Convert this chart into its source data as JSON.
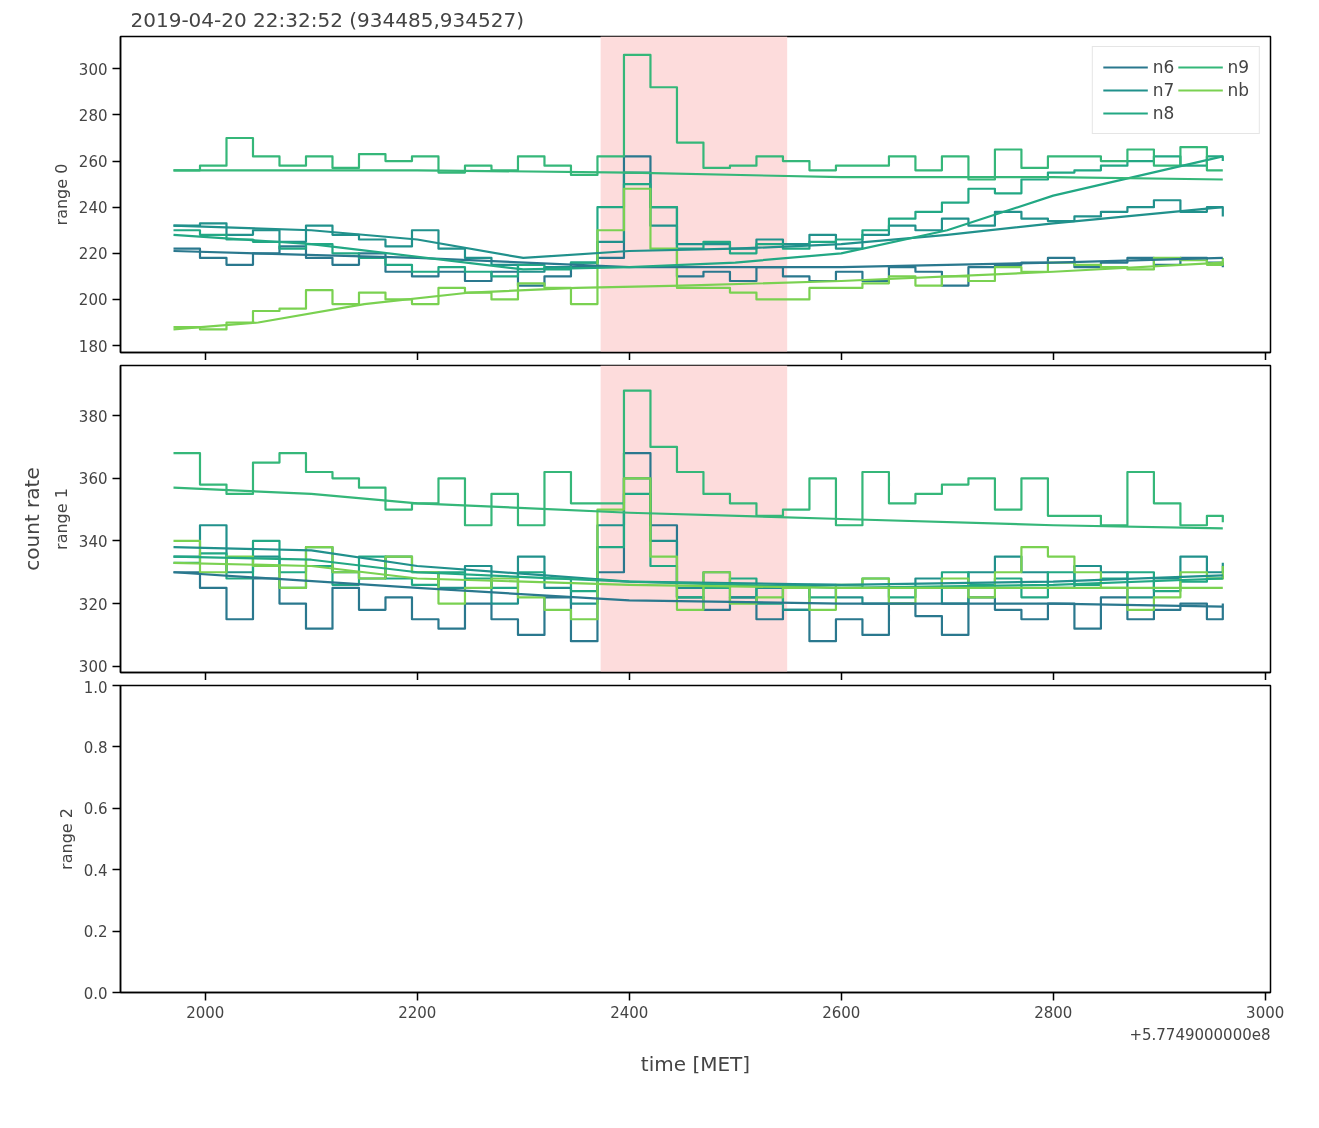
{
  "chart_data": [
    {
      "type": "step",
      "title": "2019-04-20 22:32:52 (934485,934527)",
      "ylabel": "range 0",
      "xlim": [
        1920,
        3005
      ],
      "xticks": [
        2000,
        2200,
        2400,
        2600,
        2800,
        3000
      ],
      "ylim": [
        177,
        314
      ],
      "yticks": [
        180,
        200,
        220,
        240,
        260,
        280,
        300
      ],
      "tick_labels": "y",
      "legend": "top right",
      "bands": [
        {
          "axis": "x",
          "from": 2373,
          "to": 2549,
          "color": "#fddcdc"
        }
      ],
      "x": [
        1970,
        1995,
        2020,
        2045,
        2070,
        2095,
        2120,
        2145,
        2170,
        2195,
        2220,
        2245,
        2270,
        2295,
        2320,
        2345,
        2370,
        2395,
        2420,
        2445,
        2470,
        2495,
        2520,
        2545,
        2570,
        2595,
        2620,
        2645,
        2670,
        2695,
        2720,
        2745,
        2770,
        2795,
        2820,
        2845,
        2870,
        2895,
        2920,
        2945,
        2960
      ],
      "series": [
        {
          "name": "n6",
          "color": "#2a788e",
          "values": [
            222,
            218,
            215,
            220,
            223,
            218,
            215,
            220,
            212,
            210,
            212,
            208,
            212,
            206,
            210,
            214,
            218,
            262,
            240,
            210,
            212,
            208,
            214,
            210,
            208,
            212,
            208,
            214,
            212,
            206,
            214,
            215,
            216,
            218,
            214,
            216,
            218,
            215,
            218,
            216,
            214
          ]
        },
        {
          "name": "n7",
          "color": "#21918c",
          "values": [
            232,
            233,
            228,
            230,
            225,
            232,
            228,
            226,
            223,
            230,
            222,
            218,
            215,
            212,
            214,
            216,
            225,
            255,
            232,
            224,
            224,
            222,
            226,
            224,
            228,
            222,
            228,
            232,
            230,
            235,
            232,
            238,
            235,
            234,
            236,
            238,
            240,
            243,
            238,
            240,
            236
          ]
        },
        {
          "name": "n8",
          "color": "#22a884",
          "values": [
            230,
            228,
            226,
            225,
            222,
            224,
            220,
            218,
            215,
            212,
            214,
            212,
            210,
            215,
            213,
            216,
            240,
            250,
            240,
            222,
            225,
            220,
            224,
            222,
            225,
            226,
            230,
            235,
            238,
            242,
            248,
            246,
            252,
            255,
            256,
            258,
            260,
            262,
            258,
            262,
            260
          ]
        },
        {
          "name": "n9",
          "color": "#35b779",
          "values": [
            256,
            258,
            270,
            262,
            258,
            262,
            257,
            263,
            260,
            262,
            255,
            258,
            256,
            262,
            258,
            254,
            262,
            306,
            292,
            268,
            257,
            258,
            262,
            260,
            256,
            258,
            258,
            262,
            256,
            262,
            252,
            265,
            257,
            262,
            262,
            260,
            265,
            258,
            266,
            256,
            256
          ]
        },
        {
          "name": "nb",
          "color": "#7ad151",
          "values": [
            188,
            187,
            190,
            195,
            196,
            204,
            198,
            203,
            200,
            198,
            205,
            203,
            200,
            207,
            205,
            198,
            230,
            248,
            222,
            205,
            205,
            203,
            200,
            200,
            205,
            205,
            207,
            210,
            206,
            210,
            208,
            214,
            212,
            216,
            215,
            214,
            213,
            218,
            217,
            215,
            218
          ]
        },
        {
          "type": "line",
          "color": "#2a788e",
          "x": [
            1970,
            2200,
            2400,
            2600,
            2800,
            2960
          ],
          "values": [
            221,
            218,
            214,
            214,
            216,
            218
          ]
        },
        {
          "type": "line",
          "color": "#21918c",
          "x": [
            1970,
            2100,
            2200,
            2300,
            2400,
            2500,
            2600,
            2700,
            2800,
            2960
          ],
          "values": [
            232,
            230,
            226,
            218,
            221,
            222,
            224,
            228,
            233,
            240
          ]
        },
        {
          "type": "line",
          "color": "#22a884",
          "x": [
            1970,
            2100,
            2300,
            2400,
            2500,
            2600,
            2700,
            2800,
            2960
          ],
          "values": [
            228,
            224,
            213,
            214,
            216,
            220,
            230,
            245,
            262
          ]
        },
        {
          "type": "line",
          "color": "#35b779",
          "x": [
            1970,
            2200,
            2400,
            2600,
            2800,
            2960
          ],
          "values": [
            256,
            256,
            255,
            253,
            253,
            252
          ]
        },
        {
          "type": "line",
          "color": "#7ad151",
          "x": [
            1970,
            2050,
            2150,
            2250,
            2350,
            2450,
            2600,
            2800,
            2960
          ],
          "values": [
            187,
            190,
            198,
            203,
            205,
            206,
            208,
            212,
            216
          ]
        }
      ]
    },
    {
      "type": "step",
      "ylabel": "range 1",
      "xlim": [
        1920,
        3005
      ],
      "xticks": [
        2000,
        2200,
        2400,
        2600,
        2800,
        3000
      ],
      "ylim": [
        298,
        396
      ],
      "yticks": [
        300,
        320,
        340,
        360,
        380
      ],
      "tick_labels": "y",
      "annotations": [
        "count rate"
      ],
      "bands": [
        {
          "axis": "x",
          "from": 2373,
          "to": 2549,
          "color": "#fddcdc"
        }
      ],
      "x": [
        1970,
        1995,
        2020,
        2045,
        2070,
        2095,
        2120,
        2145,
        2170,
        2195,
        2220,
        2245,
        2270,
        2295,
        2320,
        2345,
        2370,
        2395,
        2420,
        2445,
        2470,
        2495,
        2520,
        2545,
        2570,
        2595,
        2620,
        2645,
        2670,
        2695,
        2720,
        2745,
        2770,
        2795,
        2820,
        2845,
        2870,
        2895,
        2920,
        2945,
        2960
      ],
      "series": [
        {
          "color": "#2a788e",
          "values": [
            330,
            325,
            315,
            328,
            320,
            312,
            325,
            318,
            322,
            315,
            312,
            320,
            315,
            310,
            322,
            308,
            330,
            368,
            345,
            322,
            318,
            322,
            315,
            318,
            308,
            315,
            310,
            320,
            316,
            310,
            322,
            318,
            315,
            320,
            312,
            322,
            315,
            318,
            320,
            315,
            320
          ]
        },
        {
          "color": "#21918c",
          "values": [
            335,
            345,
            330,
            335,
            325,
            338,
            330,
            328,
            335,
            330,
            325,
            332,
            320,
            335,
            325,
            320,
            345,
            360,
            340,
            325,
            330,
            322,
            325,
            318,
            326,
            322,
            320,
            325,
            328,
            320,
            330,
            335,
            330,
            325,
            332,
            330,
            322,
            328,
            335,
            330,
            333
          ]
        },
        {
          "color": "#22a884",
          "values": [
            333,
            336,
            328,
            340,
            330,
            332,
            326,
            335,
            328,
            326,
            330,
            328,
            325,
            330,
            328,
            324,
            338,
            355,
            332,
            322,
            325,
            328,
            320,
            326,
            322,
            325,
            328,
            322,
            325,
            330,
            326,
            328,
            322,
            330,
            326,
            328,
            330,
            324,
            327,
            328,
            329
          ]
        },
        {
          "color": "#35b779",
          "values": [
            368,
            358,
            355,
            365,
            368,
            362,
            360,
            357,
            350,
            352,
            360,
            345,
            355,
            345,
            362,
            352,
            352,
            388,
            370,
            362,
            355,
            352,
            348,
            350,
            360,
            345,
            362,
            352,
            355,
            358,
            360,
            350,
            360,
            348,
            348,
            345,
            362,
            352,
            345,
            348,
            346
          ]
        },
        {
          "color": "#7ad151",
          "values": [
            340,
            330,
            335,
            332,
            325,
            338,
            330,
            328,
            335,
            330,
            320,
            325,
            328,
            322,
            318,
            315,
            350,
            360,
            335,
            318,
            330,
            320,
            322,
            325,
            318,
            326,
            328,
            320,
            325,
            328,
            322,
            330,
            338,
            335,
            330,
            325,
            318,
            322,
            330,
            328,
            332
          ]
        },
        {
          "type": "line",
          "color": "#2a788e",
          "x": [
            1970,
            2200,
            2400,
            2600,
            2800,
            2960
          ],
          "values": [
            330,
            325,
            321,
            320,
            320,
            319
          ]
        },
        {
          "type": "line",
          "color": "#21918c",
          "x": [
            1970,
            2100,
            2200,
            2400,
            2600,
            2800,
            2960
          ],
          "values": [
            338,
            337,
            332,
            327,
            326,
            327,
            329
          ]
        },
        {
          "type": "line",
          "color": "#22a884",
          "x": [
            1970,
            2100,
            2200,
            2400,
            2600,
            2800,
            2960
          ],
          "values": [
            335,
            334,
            330,
            327,
            325,
            326,
            328
          ]
        },
        {
          "type": "line",
          "color": "#35b779",
          "x": [
            1970,
            2100,
            2200,
            2400,
            2600,
            2800,
            2960
          ],
          "values": [
            357,
            355,
            352,
            349,
            347,
            345,
            344
          ]
        },
        {
          "type": "line",
          "color": "#7ad151",
          "x": [
            1970,
            2100,
            2200,
            2400,
            2600,
            2800,
            2960
          ],
          "values": [
            333,
            332,
            328,
            326,
            325,
            325,
            325
          ]
        }
      ]
    },
    {
      "type": "step",
      "ylabel": "range 2",
      "xlabel": "time [MET]",
      "xlim": [
        1920,
        3005
      ],
      "xticks": [
        2000,
        2200,
        2400,
        2600,
        2800,
        3000
      ],
      "ylim": [
        0,
        1
      ],
      "yticks": [
        {
          "value": 0,
          "label": "0.0"
        },
        0.2,
        0.4,
        0.6,
        0.8,
        {
          "value": 1,
          "label": "1.0"
        }
      ],
      "annotations": [
        "+5.7749000000e8"
      ]
    }
  ]
}
